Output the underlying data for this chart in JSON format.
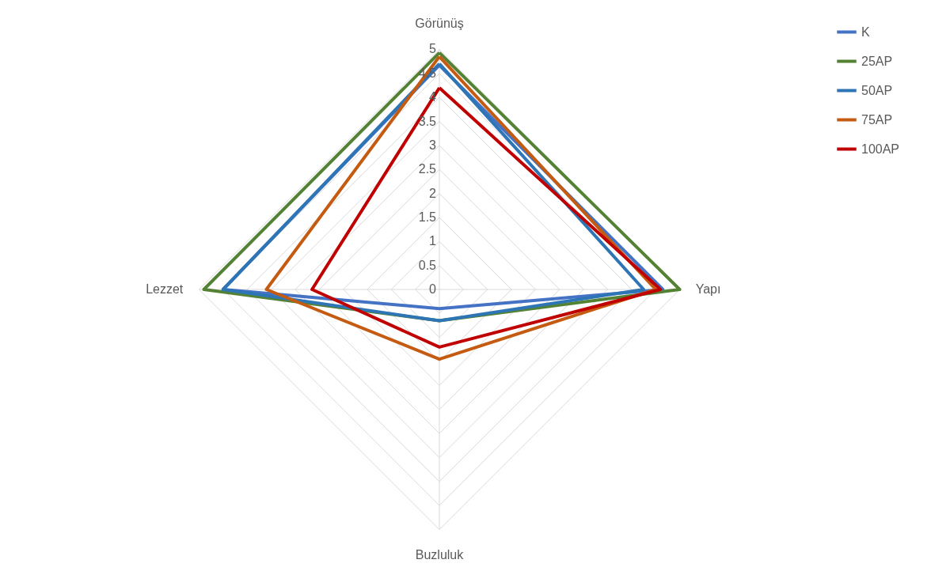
{
  "chart_data": {
    "type": "radar",
    "categories": [
      "Görünüş",
      "Yapı",
      "Buzluluk",
      "Lezzet"
    ],
    "series": [
      {
        "name": "K",
        "color": "#4472c4",
        "values": [
          4.67,
          4.65,
          0.4,
          4.5
        ]
      },
      {
        "name": "25AP",
        "color": "#548235",
        "values": [
          4.93,
          5.0,
          0.65,
          4.9
        ]
      },
      {
        "name": "50AP",
        "color": "#2e75b6",
        "values": [
          4.7,
          4.25,
          0.65,
          4.5
        ]
      },
      {
        "name": "75AP",
        "color": "#c55a11",
        "values": [
          4.85,
          4.5,
          1.45,
          3.6
        ]
      },
      {
        "name": "100AP",
        "color": "#c00000",
        "values": [
          4.2,
          4.6,
          1.2,
          2.65
        ]
      }
    ],
    "ylim": [
      0,
      5
    ],
    "yticks": [
      0,
      0.5,
      1,
      1.5,
      2,
      2.5,
      3,
      3.5,
      4,
      4.5,
      5
    ],
    "grid": true,
    "legend": "right",
    "marker": "none",
    "line_style": "solid"
  }
}
